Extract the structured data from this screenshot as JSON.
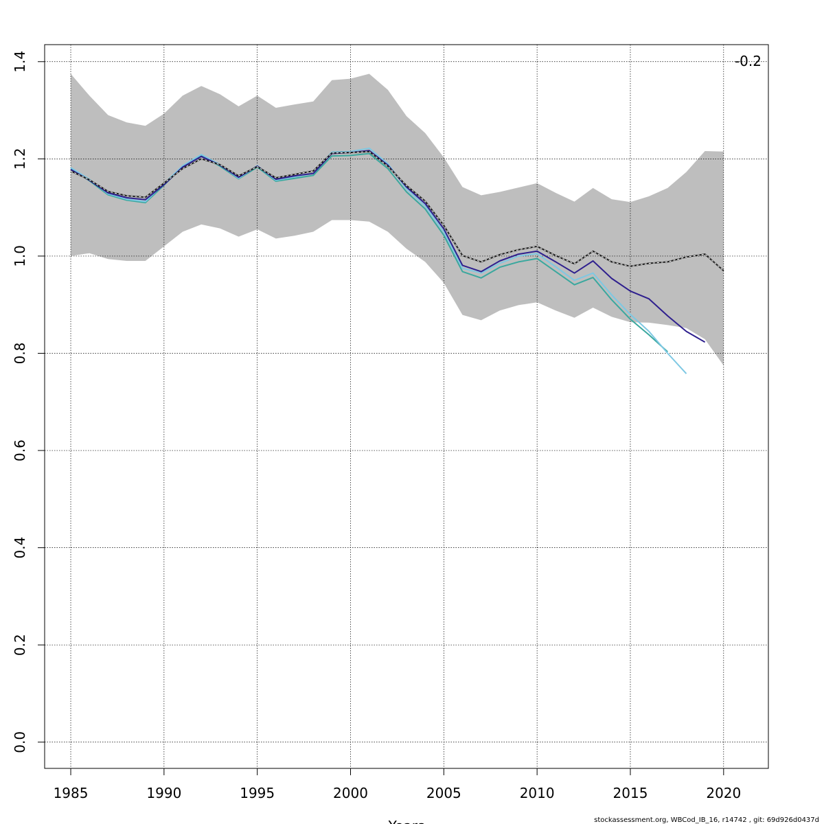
{
  "chart_data": {
    "type": "line",
    "title": "",
    "xlabel": "Years",
    "ylabel": "",
    "xlim": [
      1983.6,
      2022.4
    ],
    "ylim": [
      -0.054,
      1.435
    ],
    "x_ticks": [
      "1985",
      "1990",
      "1995",
      "2000",
      "2005",
      "2010",
      "2015",
      "2020"
    ],
    "y_ticks": [
      "0.0",
      "0.2",
      "0.4",
      "0.6",
      "0.8",
      "1.0",
      "1.2",
      "1.4"
    ],
    "grid": true,
    "annotation": "-0.2",
    "footer": "stockassessment.org, WBCod_IB_16, r14742 , git: 69d926d0437d",
    "band": {
      "color": "#bebebe",
      "x": [
        1985,
        1986,
        1987,
        1988,
        1989,
        1990,
        1991,
        1992,
        1993,
        1994,
        1995,
        1996,
        1997,
        1998,
        1999,
        2000,
        2001,
        2002,
        2003,
        2004,
        2005,
        2006,
        2007,
        2008,
        2009,
        2010,
        2011,
        2012,
        2013,
        2014,
        2015,
        2016,
        2017,
        2018,
        2019,
        2020
      ],
      "upper": [
        1.375,
        1.33,
        1.29,
        1.275,
        1.268,
        1.293,
        1.33,
        1.35,
        1.333,
        1.308,
        1.33,
        1.305,
        1.312,
        1.318,
        1.362,
        1.365,
        1.375,
        1.342,
        1.288,
        1.253,
        1.203,
        1.142,
        1.125,
        1.132,
        1.141,
        1.15,
        1.13,
        1.112,
        1.14,
        1.117,
        1.111,
        1.123,
        1.14,
        1.173,
        1.216,
        1.215
      ],
      "lower": [
        1.0,
        1.006,
        0.994,
        0.99,
        0.99,
        1.02,
        1.05,
        1.065,
        1.057,
        1.04,
        1.055,
        1.036,
        1.042,
        1.05,
        1.074,
        1.074,
        1.071,
        1.05,
        1.015,
        0.988,
        0.945,
        0.879,
        0.868,
        0.888,
        0.899,
        0.905,
        0.888,
        0.873,
        0.894,
        0.875,
        0.864,
        0.863,
        0.858,
        0.852,
        0.829,
        0.775
      ]
    },
    "series": [
      {
        "color": "#1a1a1a",
        "dashed_overlay": true,
        "x": [
          1985,
          1986,
          1987,
          1988,
          1989,
          1990,
          1991,
          1992,
          1993,
          1994,
          1995,
          1996,
          1997,
          1998,
          1999,
          2000,
          2001,
          2002,
          2003,
          2004,
          2005,
          2006,
          2007,
          2008,
          2009,
          2010,
          2011,
          2012,
          2013,
          2014,
          2015,
          2016,
          2017,
          2018,
          2019,
          2020
        ],
        "values": [
          1.175,
          1.157,
          1.133,
          1.124,
          1.121,
          1.15,
          1.18,
          1.2,
          1.188,
          1.165,
          1.184,
          1.161,
          1.168,
          1.175,
          1.212,
          1.213,
          1.215,
          1.185,
          1.145,
          1.113,
          1.063,
          1.001,
          0.988,
          1.003,
          1.013,
          1.02,
          1.001,
          0.984,
          1.01,
          0.988,
          0.979,
          0.985,
          0.988,
          0.998,
          1.004,
          0.97
        ]
      },
      {
        "color": "#2e1f8e",
        "x": [
          1985,
          1986,
          1987,
          1988,
          1989,
          1990,
          1991,
          1992,
          1993,
          1994,
          1995,
          1996,
          1997,
          1998,
          1999,
          2000,
          2001,
          2002,
          2003,
          2004,
          2005,
          2006,
          2007,
          2008,
          2009,
          2010,
          2011,
          2012,
          2013,
          2014,
          2015,
          2016,
          2017,
          2018,
          2019
        ],
        "values": [
          1.178,
          1.156,
          1.13,
          1.12,
          1.116,
          1.147,
          1.183,
          1.205,
          1.187,
          1.162,
          1.185,
          1.158,
          1.165,
          1.17,
          1.211,
          1.213,
          1.217,
          1.187,
          1.142,
          1.108,
          1.056,
          0.981,
          0.968,
          0.99,
          1.004,
          1.01,
          0.988,
          0.965,
          0.99,
          0.954,
          0.928,
          0.912,
          0.877,
          0.845,
          0.823
        ]
      },
      {
        "color": "#7ec8e3",
        "x": [
          1985,
          1986,
          1987,
          1988,
          1989,
          1990,
          1991,
          1992,
          1993,
          1994,
          1995,
          1996,
          1997,
          1998,
          1999,
          2000,
          2001,
          2002,
          2003,
          2004,
          2005,
          2006,
          2007,
          2008,
          2009,
          2010,
          2011,
          2012,
          2013,
          2014,
          2015,
          2016,
          2017,
          2018
        ],
        "values": [
          1.182,
          1.158,
          1.128,
          1.117,
          1.112,
          1.149,
          1.186,
          1.209,
          1.188,
          1.16,
          1.186,
          1.156,
          1.163,
          1.17,
          1.214,
          1.215,
          1.222,
          1.19,
          1.138,
          1.103,
          1.05,
          0.975,
          0.965,
          0.985,
          1.0,
          1.005,
          0.978,
          0.95,
          0.965,
          0.92,
          0.88,
          0.845,
          0.8,
          0.758
        ]
      },
      {
        "color": "#3aa89e",
        "x": [
          1985,
          1986,
          1987,
          1988,
          1989,
          1990,
          1991,
          1992,
          1993,
          1994,
          1995,
          1996,
          1997,
          1998,
          1999,
          2000,
          2001,
          2002,
          2003,
          2004,
          2005,
          2006,
          2007,
          2008,
          2009,
          2010,
          2011,
          2012,
          2013,
          2014,
          2015,
          2016,
          2017
        ],
        "values": [
          1.18,
          1.155,
          1.126,
          1.115,
          1.11,
          1.146,
          1.184,
          1.207,
          1.185,
          1.159,
          1.183,
          1.154,
          1.16,
          1.166,
          1.206,
          1.207,
          1.211,
          1.18,
          1.132,
          1.097,
          1.043,
          0.968,
          0.955,
          0.977,
          0.988,
          0.995,
          0.968,
          0.941,
          0.956,
          0.91,
          0.87,
          0.838,
          0.803
        ]
      }
    ]
  }
}
